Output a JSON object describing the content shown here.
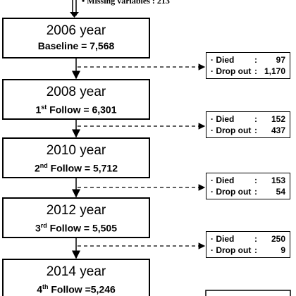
{
  "note": "•  Missing variables : 213",
  "boxes": [
    {
      "year": "2006 year",
      "label": "Baseline = 7,568"
    },
    {
      "year": "2008 year",
      "ordinal": "1",
      "suffix": "st",
      "label": " Follow = 6,301"
    },
    {
      "year": "2010 year",
      "ordinal": "2",
      "suffix": "nd",
      "label": " Follow = 5,712"
    },
    {
      "year": "2012 year",
      "ordinal": "3",
      "suffix": "rd",
      "label": " Follow = 5,505"
    },
    {
      "year": "2014 year",
      "ordinal": "4",
      "suffix": "th",
      "label": " Follow =5,246"
    }
  ],
  "side_boxes": [
    {
      "rows": [
        {
          "label": "· Died",
          "sep": ":",
          "value": "97"
        },
        {
          "label": "· Drop out",
          "sep": ":",
          "value": "1,170"
        }
      ]
    },
    {
      "rows": [
        {
          "label": "· Died",
          "sep": ":",
          "value": "152"
        },
        {
          "label": "· Drop out",
          "sep": ":",
          "value": "437"
        }
      ]
    },
    {
      "rows": [
        {
          "label": "· Died",
          "sep": ":",
          "value": "153"
        },
        {
          "label": "· Drop out",
          "sep": ":",
          "value": "54"
        }
      ]
    },
    {
      "rows": [
        {
          "label": "· Died",
          "sep": ":",
          "value": "250"
        },
        {
          "label": "· Drop out",
          "sep": ":",
          "value": "9"
        }
      ]
    }
  ]
}
